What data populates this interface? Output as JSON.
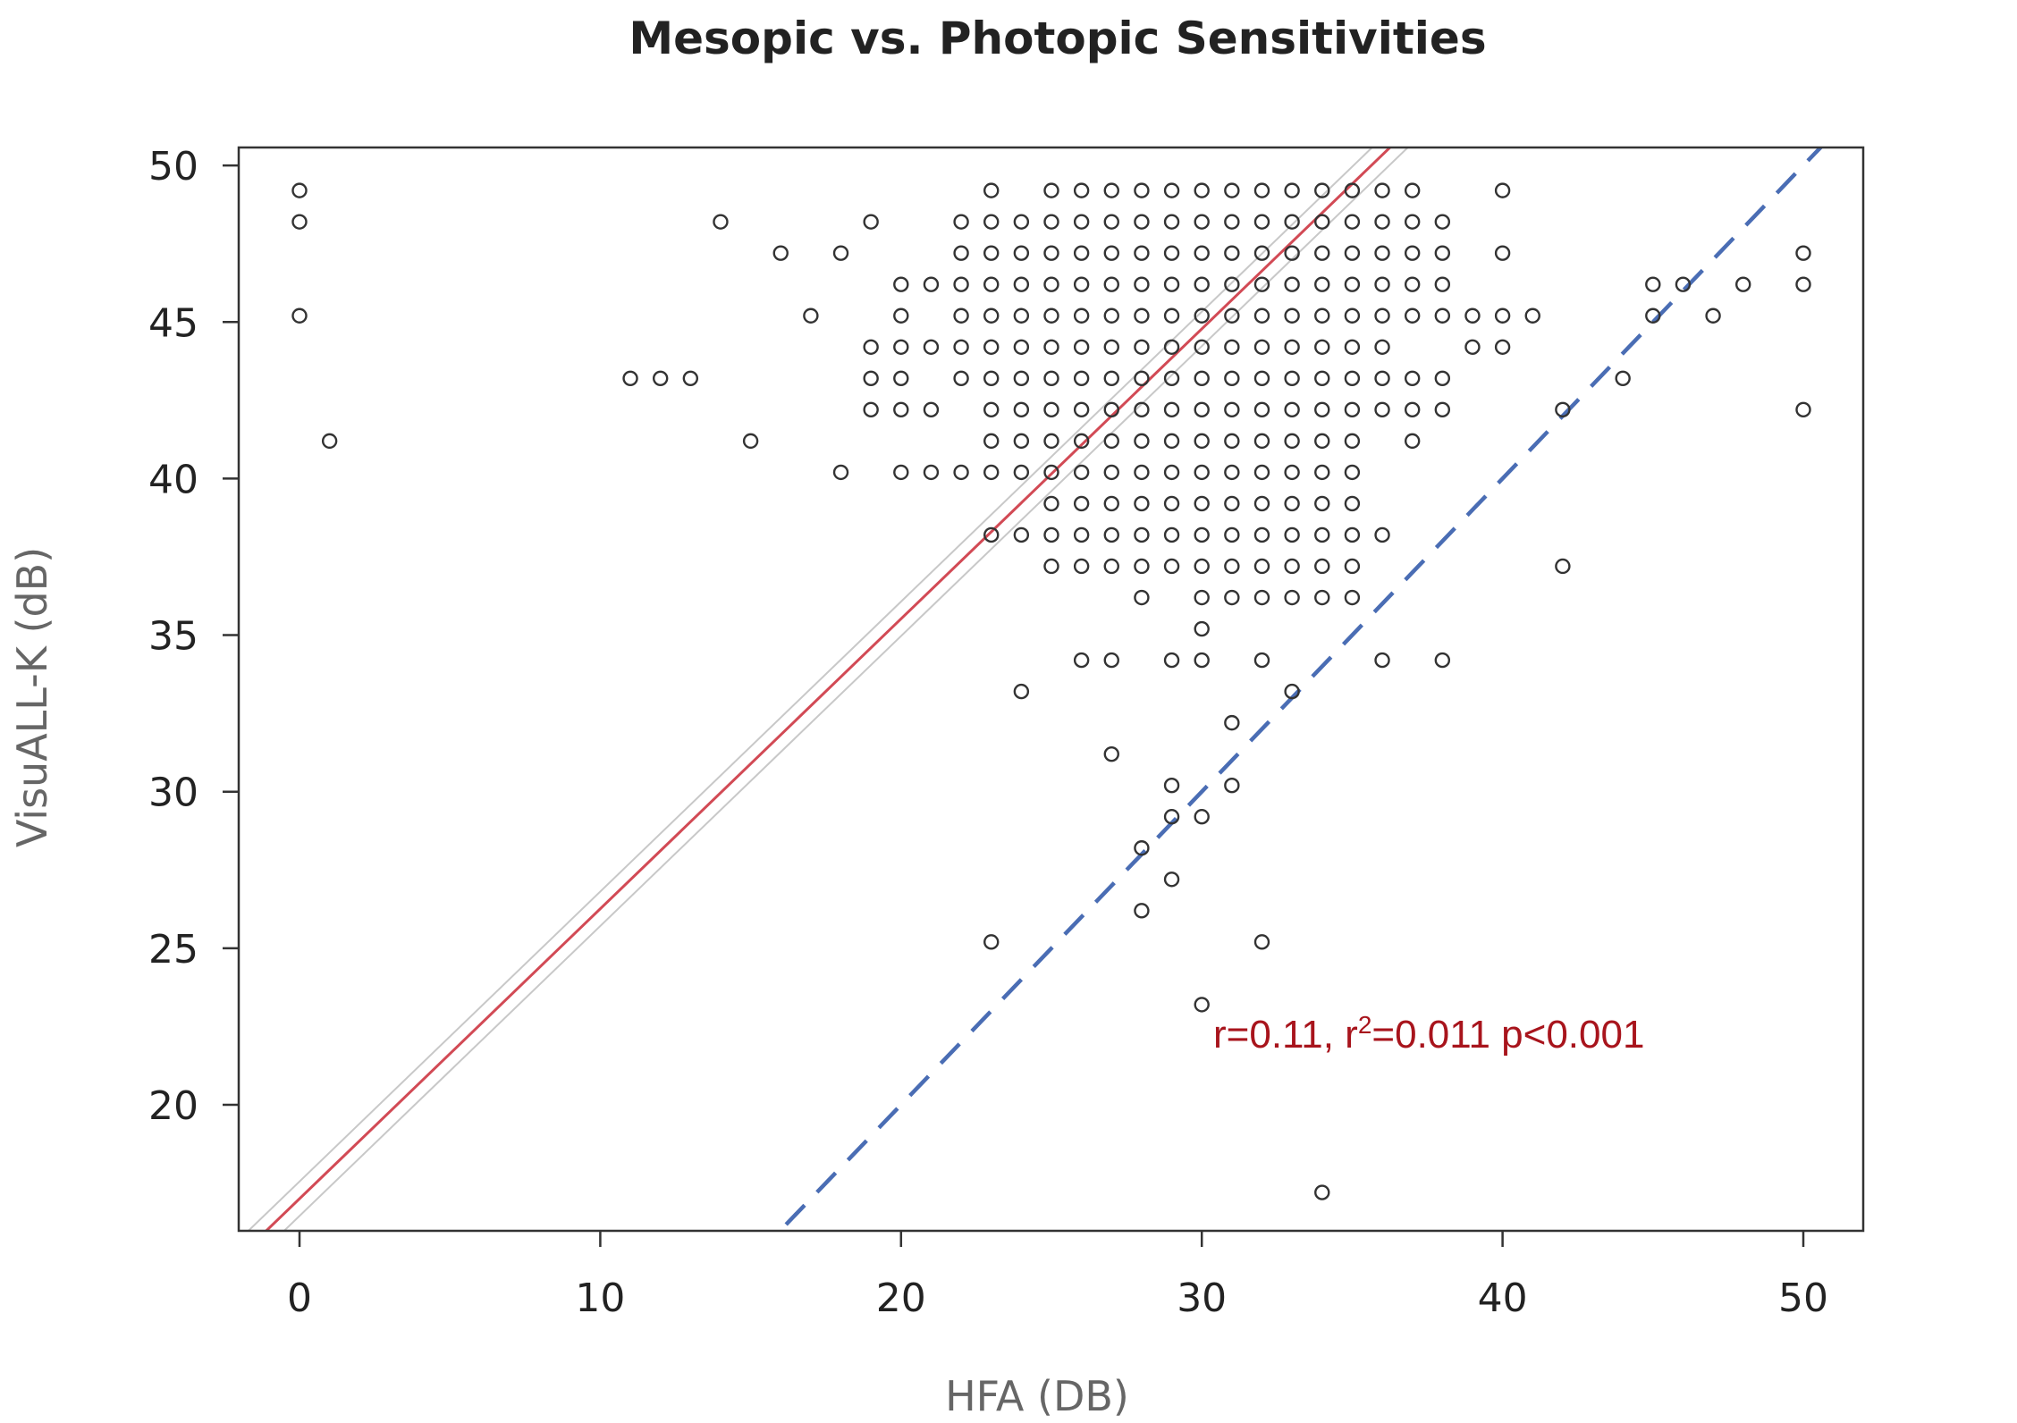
{
  "chart_data": {
    "type": "scatter",
    "title": "Mesopic vs. Photopic Sensitivities",
    "xlabel": "HFA (DB)",
    "ylabel": "VisuALL-K (dB)",
    "xlim": [
      -2,
      52
    ],
    "ylim": [
      16,
      50.6
    ],
    "xticks": [
      0,
      10,
      20,
      30,
      40,
      50
    ],
    "yticks": [
      20,
      25,
      30,
      35,
      40,
      45,
      50
    ],
    "grid": false,
    "annotation": "r=0.11, r²=0.011 p<0.001",
    "annotation_parts": {
      "a": "r=0.11, r",
      "sup": "2",
      "b": "=0.011 p<0.001"
    },
    "rows": [
      {
        "y": 49,
        "x": [
          0,
          23,
          25,
          26,
          27,
          28,
          29,
          30,
          31,
          32,
          33,
          34,
          35,
          36,
          37,
          40
        ]
      },
      {
        "y": 48,
        "x": [
          0,
          14,
          19,
          22,
          23,
          24,
          25,
          26,
          27,
          28,
          29,
          30,
          31,
          32,
          33,
          34,
          35,
          36,
          37,
          38
        ]
      },
      {
        "y": 47,
        "x": [
          16,
          18,
          22,
          23,
          24,
          25,
          26,
          27,
          28,
          29,
          30,
          31,
          32,
          33,
          34,
          35,
          36,
          37,
          38,
          40,
          50
        ]
      },
      {
        "y": 46,
        "x": [
          20,
          21,
          22,
          23,
          24,
          25,
          26,
          27,
          28,
          29,
          30,
          31,
          32,
          33,
          34,
          35,
          36,
          37,
          38,
          45,
          46,
          48,
          50
        ]
      },
      {
        "y": 45,
        "x": [
          0,
          17,
          20,
          22,
          23,
          24,
          25,
          26,
          27,
          28,
          29,
          30,
          31,
          32,
          33,
          34,
          35,
          36,
          37,
          38,
          39,
          40,
          41,
          45,
          47
        ]
      },
      {
        "y": 44,
        "x": [
          19,
          20,
          21,
          22,
          23,
          24,
          25,
          26,
          27,
          28,
          29,
          30,
          31,
          32,
          33,
          34,
          35,
          36,
          39,
          40
        ]
      },
      {
        "y": 43,
        "x": [
          11,
          12,
          13,
          19,
          20,
          22,
          23,
          24,
          25,
          26,
          27,
          28,
          29,
          30,
          31,
          32,
          33,
          34,
          35,
          36,
          37,
          38,
          44
        ]
      },
      {
        "y": 42,
        "x": [
          19,
          20,
          21,
          23,
          24,
          25,
          26,
          27,
          28,
          29,
          30,
          31,
          32,
          33,
          34,
          35,
          36,
          37,
          38,
          42,
          50
        ]
      },
      {
        "y": 41,
        "x": [
          1,
          15,
          23,
          24,
          25,
          26,
          27,
          28,
          29,
          30,
          31,
          32,
          33,
          34,
          35,
          37
        ]
      },
      {
        "y": 40,
        "x": [
          18,
          20,
          21,
          22,
          23,
          24,
          25,
          26,
          27,
          28,
          29,
          30,
          31,
          32,
          33,
          34,
          35
        ]
      },
      {
        "y": 39,
        "x": [
          25,
          26,
          27,
          28,
          29,
          30,
          31,
          32,
          33,
          34,
          35
        ]
      },
      {
        "y": 38,
        "x": [
          23,
          24,
          25,
          26,
          27,
          28,
          29,
          30,
          31,
          32,
          33,
          34,
          35,
          36
        ]
      },
      {
        "y": 37,
        "x": [
          25,
          26,
          27,
          28,
          29,
          30,
          31,
          32,
          33,
          34,
          35,
          42
        ]
      },
      {
        "y": 36,
        "x": [
          28,
          30,
          31,
          32,
          33,
          34,
          35
        ]
      },
      {
        "y": 35,
        "x": [
          30
        ]
      },
      {
        "y": 34,
        "x": [
          26,
          27,
          29,
          30,
          32,
          36,
          38
        ]
      },
      {
        "y": 33,
        "x": [
          24,
          33
        ]
      },
      {
        "y": 32,
        "x": [
          31
        ]
      },
      {
        "y": 31,
        "x": [
          27
        ]
      },
      {
        "y": 30,
        "x": [
          29,
          31
        ]
      },
      {
        "y": 29,
        "x": [
          29,
          30
        ]
      },
      {
        "y": 28,
        "x": [
          28
        ]
      },
      {
        "y": 27,
        "x": [
          29
        ]
      },
      {
        "y": 26,
        "x": [
          28
        ]
      },
      {
        "y": 25,
        "x": [
          23,
          32
        ]
      },
      {
        "y": 23,
        "x": [
          30
        ]
      },
      {
        "y": 17,
        "x": [
          34
        ]
      }
    ],
    "regression_line": {
      "intercept": 17.0,
      "slope": 0.926,
      "color": "#d24a55",
      "band_color": "#c8c8c8"
    },
    "identity_line": {
      "slope": 1,
      "intercept": 0,
      "style": "dashed",
      "color": "#4a6db4"
    },
    "point_style": {
      "marker": "open-circle",
      "color": "#333333"
    }
  }
}
